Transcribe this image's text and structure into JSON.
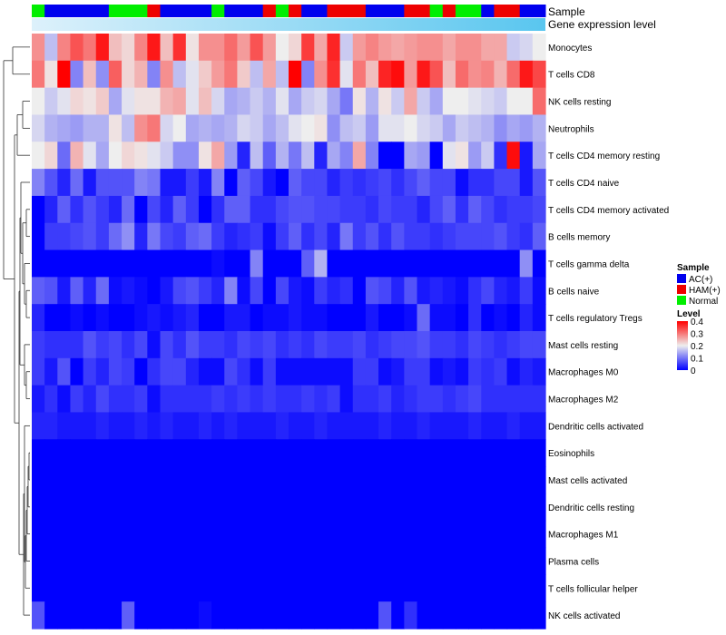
{
  "chart_data": {
    "type": "heatmap",
    "annotation_titles": [
      "Sample",
      "Gene expression level"
    ],
    "legend": {
      "sample_title": "Sample",
      "sample_groups": [
        {
          "label": "AC(+)",
          "color": "#0000EE"
        },
        {
          "label": "HAM(+)",
          "color": "#EE0000"
        },
        {
          "label": "Normal",
          "color": "#00EE00"
        }
      ],
      "level_title": "Level",
      "level_ticks": [
        "0.4",
        "0.3",
        "0.2",
        "0.1",
        "0"
      ],
      "level_range": [
        0,
        0.4
      ]
    },
    "colors": {
      "low": "#0000FF",
      "mid": "#EEEEEE",
      "high": "#FF0000",
      "expression_bar_start": "#DDF1FB",
      "expression_bar_end": "#59C6EF"
    },
    "sample_groups_row": [
      "N",
      "A",
      "A",
      "A",
      "A",
      "A",
      "N",
      "N",
      "N",
      "H",
      "A",
      "A",
      "A",
      "A",
      "N",
      "A",
      "A",
      "A",
      "H",
      "N",
      "H",
      "A",
      "A",
      "H",
      "H",
      "H",
      "A",
      "A",
      "A",
      "H",
      "H",
      "N",
      "H",
      "N",
      "N",
      "A",
      "H",
      "H",
      "A",
      "A"
    ],
    "rows": [
      "Monocytes",
      "T cells CD8",
      "NK cells resting",
      "Neutrophils",
      "T cells CD4 memory resting",
      "T cells CD4 naive",
      "T cells CD4 memory activated",
      "B cells memory",
      "T cells gamma delta",
      "B cells naive",
      "T cells regulatory  Tregs",
      "Mast cells resting",
      "Macrophages M0",
      "Macrophages M2",
      "Dendritic cells activated",
      "Eosinophils",
      "Mast cells activated",
      "Dendritic cells resting",
      "Macrophages M1",
      "Plasma cells",
      "T cells follicular helper",
      "NK cells activated"
    ],
    "values": [
      [
        0.28,
        0.16,
        0.29,
        0.33,
        0.3,
        0.38,
        0.24,
        0.22,
        0.29,
        0.38,
        0.24,
        0.36,
        0.21,
        0.28,
        0.28,
        0.31,
        0.27,
        0.33,
        0.27,
        0.2,
        0.22,
        0.35,
        0.26,
        0.37,
        0.17,
        0.27,
        0.29,
        0.27,
        0.26,
        0.27,
        0.28,
        0.28,
        0.26,
        0.28,
        0.28,
        0.26,
        0.26,
        0.17,
        0.18,
        0.2
      ],
      [
        0.3,
        0.21,
        0.4,
        0.11,
        0.24,
        0.12,
        0.32,
        0.22,
        0.25,
        0.11,
        0.28,
        0.16,
        0.19,
        0.23,
        0.27,
        0.3,
        0.23,
        0.16,
        0.26,
        0.16,
        0.4,
        0.11,
        0.28,
        0.36,
        0.19,
        0.3,
        0.24,
        0.37,
        0.39,
        0.27,
        0.38,
        0.33,
        0.24,
        0.31,
        0.28,
        0.29,
        0.25,
        0.31,
        0.38,
        0.34
      ],
      [
        0.2,
        0.17,
        0.19,
        0.22,
        0.21,
        0.23,
        0.14,
        0.19,
        0.21,
        0.21,
        0.25,
        0.26,
        0.19,
        0.24,
        0.18,
        0.14,
        0.15,
        0.17,
        0.15,
        0.19,
        0.14,
        0.17,
        0.18,
        0.14,
        0.1,
        0.21,
        0.15,
        0.21,
        0.17,
        0.26,
        0.17,
        0.14,
        0.2,
        0.2,
        0.19,
        0.18,
        0.17,
        0.2,
        0.2,
        0.31
      ],
      [
        0.18,
        0.15,
        0.14,
        0.13,
        0.15,
        0.15,
        0.21,
        0.16,
        0.28,
        0.3,
        0.18,
        0.2,
        0.14,
        0.15,
        0.14,
        0.15,
        0.18,
        0.17,
        0.14,
        0.16,
        0.19,
        0.2,
        0.21,
        0.12,
        0.16,
        0.17,
        0.13,
        0.19,
        0.19,
        0.2,
        0.18,
        0.17,
        0.14,
        0.17,
        0.16,
        0.15,
        0.12,
        0.14,
        0.13,
        0.15
      ],
      [
        0.2,
        0.22,
        0.09,
        0.25,
        0.19,
        0.14,
        0.2,
        0.22,
        0.21,
        0.19,
        0.17,
        0.12,
        0.12,
        0.21,
        0.26,
        0.13,
        0.03,
        0.16,
        0.08,
        0.15,
        0.1,
        0.16,
        0.03,
        0.14,
        0.11,
        0.26,
        0.11,
        0.0,
        0.0,
        0.14,
        0.13,
        0.0,
        0.19,
        0.21,
        0.13,
        0.17,
        0.04,
        0.39,
        0.02,
        0.14
      ],
      [
        0.11,
        0.07,
        0.03,
        0.09,
        0.02,
        0.07,
        0.07,
        0.07,
        0.11,
        0.1,
        0.02,
        0.02,
        0.05,
        0.02,
        0.11,
        0.0,
        0.08,
        0.06,
        0.02,
        0.0,
        0.08,
        0.06,
        0.06,
        0.03,
        0.05,
        0.04,
        0.05,
        0.06,
        0.04,
        0.06,
        0.08,
        0.06,
        0.06,
        0.01,
        0.04,
        0.04,
        0.06,
        0.06,
        0.02,
        0.07
      ],
      [
        0.0,
        0.03,
        0.08,
        0.04,
        0.07,
        0.05,
        0.03,
        0.09,
        0.0,
        0.06,
        0.03,
        0.08,
        0.05,
        0.0,
        0.04,
        0.08,
        0.08,
        0.04,
        0.04,
        0.06,
        0.07,
        0.07,
        0.06,
        0.06,
        0.05,
        0.05,
        0.04,
        0.06,
        0.05,
        0.05,
        0.03,
        0.06,
        0.08,
        0.04,
        0.08,
        0.06,
        0.04,
        0.05,
        0.05,
        0.06
      ],
      [
        0.0,
        0.05,
        0.05,
        0.06,
        0.07,
        0.05,
        0.09,
        0.12,
        0.03,
        0.1,
        0.06,
        0.05,
        0.08,
        0.09,
        0.05,
        0.03,
        0.04,
        0.05,
        0.01,
        0.05,
        0.08,
        0.04,
        0.06,
        0.03,
        0.1,
        0.05,
        0.07,
        0.04,
        0.07,
        0.05,
        0.05,
        0.04,
        0.05,
        0.06,
        0.06,
        0.06,
        0.07,
        0.05,
        0.04,
        0.08
      ],
      [
        0.0,
        0.0,
        0.0,
        0.0,
        0.0,
        0.0,
        0.0,
        0.0,
        0.0,
        0.0,
        0.0,
        0.0,
        0.0,
        0.0,
        0.01,
        0.0,
        0.0,
        0.11,
        0.0,
        0.0,
        0.0,
        0.08,
        0.15,
        0.0,
        0.0,
        0.0,
        0.0,
        0.0,
        0.0,
        0.0,
        0.0,
        0.0,
        0.0,
        0.0,
        0.0,
        0.0,
        0.0,
        0.0,
        0.12,
        0.0
      ],
      [
        0.08,
        0.07,
        0.02,
        0.08,
        0.03,
        0.09,
        0.01,
        0.02,
        0.01,
        0.0,
        0.02,
        0.06,
        0.07,
        0.05,
        0.03,
        0.11,
        0.01,
        0.06,
        0.0,
        0.06,
        0.02,
        0.01,
        0.05,
        0.03,
        0.04,
        0.0,
        0.07,
        0.06,
        0.03,
        0.07,
        0.02,
        0.03,
        0.02,
        0.01,
        0.04,
        0.06,
        0.03,
        0.02,
        0.05,
        0.01
      ],
      [
        0.03,
        0.0,
        0.0,
        0.01,
        0.0,
        0.01,
        0.0,
        0.0,
        0.01,
        0.02,
        0.01,
        0.02,
        0.03,
        0.0,
        0.0,
        0.02,
        0.02,
        0.0,
        0.01,
        0.01,
        0.02,
        0.01,
        0.01,
        0.0,
        0.0,
        0.0,
        0.02,
        0.0,
        0.0,
        0.01,
        0.09,
        0.01,
        0.01,
        0.0,
        0.04,
        0.0,
        0.01,
        0.0,
        0.03,
        0.01
      ],
      [
        0.05,
        0.04,
        0.04,
        0.04,
        0.07,
        0.05,
        0.06,
        0.04,
        0.06,
        0.01,
        0.06,
        0.04,
        0.07,
        0.05,
        0.05,
        0.04,
        0.06,
        0.05,
        0.06,
        0.04,
        0.05,
        0.04,
        0.06,
        0.05,
        0.05,
        0.06,
        0.04,
        0.05,
        0.06,
        0.06,
        0.07,
        0.05,
        0.05,
        0.04,
        0.06,
        0.05,
        0.04,
        0.05,
        0.06,
        0.06
      ],
      [
        0.05,
        0.02,
        0.07,
        0.0,
        0.05,
        0.03,
        0.06,
        0.05,
        0.0,
        0.04,
        0.06,
        0.06,
        0.03,
        0.01,
        0.01,
        0.06,
        0.04,
        0.01,
        0.05,
        0.01,
        0.01,
        0.01,
        0.01,
        0.01,
        0.01,
        0.05,
        0.05,
        0.01,
        0.02,
        0.05,
        0.05,
        0.01,
        0.02,
        0.01,
        0.05,
        0.04,
        0.05,
        0.01,
        0.03,
        0.02
      ],
      [
        0.02,
        0.04,
        0.01,
        0.05,
        0.03,
        0.06,
        0.04,
        0.04,
        0.05,
        0.01,
        0.04,
        0.04,
        0.04,
        0.04,
        0.05,
        0.04,
        0.05,
        0.04,
        0.05,
        0.04,
        0.04,
        0.05,
        0.04,
        0.05,
        0.01,
        0.04,
        0.04,
        0.05,
        0.03,
        0.04,
        0.05,
        0.05,
        0.04,
        0.05,
        0.06,
        0.04,
        0.04,
        0.04,
        0.04,
        0.04
      ],
      [
        0.03,
        0.03,
        0.02,
        0.02,
        0.02,
        0.03,
        0.02,
        0.02,
        0.03,
        0.02,
        0.03,
        0.02,
        0.02,
        0.03,
        0.02,
        0.03,
        0.02,
        0.02,
        0.02,
        0.03,
        0.02,
        0.02,
        0.03,
        0.02,
        0.02,
        0.02,
        0.02,
        0.03,
        0.02,
        0.02,
        0.03,
        0.02,
        0.02,
        0.02,
        0.03,
        0.02,
        0.02,
        0.03,
        0.02,
        0.02
      ],
      [
        0.0,
        0.0,
        0.0,
        0.0,
        0.0,
        0.0,
        0.0,
        0.0,
        0.0,
        0.0,
        0.0,
        0.0,
        0.0,
        0.0,
        0.0,
        0.0,
        0.0,
        0.0,
        0.0,
        0.0,
        0.0,
        0.0,
        0.0,
        0.0,
        0.0,
        0.0,
        0.0,
        0.0,
        0.0,
        0.0,
        0.0,
        0.0,
        0.0,
        0.0,
        0.0,
        0.0,
        0.0,
        0.0,
        0.0,
        0.0
      ],
      [
        0.0,
        0.0,
        0.0,
        0.0,
        0.0,
        0.0,
        0.0,
        0.0,
        0.0,
        0.0,
        0.0,
        0.0,
        0.0,
        0.0,
        0.0,
        0.0,
        0.0,
        0.0,
        0.0,
        0.0,
        0.0,
        0.0,
        0.0,
        0.0,
        0.0,
        0.0,
        0.0,
        0.0,
        0.0,
        0.0,
        0.0,
        0.0,
        0.0,
        0.0,
        0.0,
        0.0,
        0.0,
        0.0,
        0.0,
        0.0
      ],
      [
        0.0,
        0.0,
        0.0,
        0.0,
        0.0,
        0.0,
        0.0,
        0.0,
        0.0,
        0.0,
        0.0,
        0.0,
        0.0,
        0.0,
        0.0,
        0.0,
        0.0,
        0.0,
        0.0,
        0.0,
        0.0,
        0.0,
        0.0,
        0.0,
        0.0,
        0.0,
        0.0,
        0.0,
        0.0,
        0.0,
        0.0,
        0.0,
        0.0,
        0.0,
        0.0,
        0.0,
        0.0,
        0.0,
        0.0,
        0.0
      ],
      [
        0.0,
        0.0,
        0.0,
        0.0,
        0.0,
        0.0,
        0.0,
        0.0,
        0.0,
        0.0,
        0.0,
        0.0,
        0.0,
        0.0,
        0.0,
        0.0,
        0.0,
        0.0,
        0.0,
        0.0,
        0.0,
        0.0,
        0.0,
        0.0,
        0.0,
        0.0,
        0.0,
        0.0,
        0.0,
        0.0,
        0.0,
        0.0,
        0.0,
        0.0,
        0.0,
        0.0,
        0.0,
        0.0,
        0.0,
        0.0
      ],
      [
        0.0,
        0.0,
        0.0,
        0.0,
        0.0,
        0.0,
        0.0,
        0.0,
        0.0,
        0.0,
        0.0,
        0.0,
        0.0,
        0.0,
        0.0,
        0.0,
        0.0,
        0.0,
        0.0,
        0.0,
        0.0,
        0.0,
        0.0,
        0.0,
        0.0,
        0.0,
        0.0,
        0.0,
        0.0,
        0.0,
        0.0,
        0.0,
        0.0,
        0.0,
        0.0,
        0.0,
        0.0,
        0.0,
        0.0,
        0.0
      ],
      [
        0.0,
        0.0,
        0.0,
        0.0,
        0.0,
        0.0,
        0.0,
        0.0,
        0.0,
        0.0,
        0.0,
        0.0,
        0.0,
        0.0,
        0.0,
        0.0,
        0.0,
        0.0,
        0.0,
        0.0,
        0.0,
        0.0,
        0.0,
        0.0,
        0.0,
        0.0,
        0.0,
        0.0,
        0.0,
        0.0,
        0.0,
        0.0,
        0.0,
        0.0,
        0.0,
        0.0,
        0.0,
        0.0,
        0.0,
        0.0
      ],
      [
        0.07,
        0.0,
        0.0,
        0.0,
        0.0,
        0.0,
        0.0,
        0.08,
        0.0,
        0.0,
        0.0,
        0.0,
        0.0,
        0.01,
        0.0,
        0.0,
        0.0,
        0.0,
        0.0,
        0.0,
        0.0,
        0.0,
        0.0,
        0.0,
        0.0,
        0.0,
        0.0,
        0.07,
        0.0,
        0.04,
        0.0,
        0.0,
        0.0,
        0.0,
        0.0,
        0.0,
        0.0,
        0.0,
        0.0,
        0.0
      ]
    ]
  }
}
